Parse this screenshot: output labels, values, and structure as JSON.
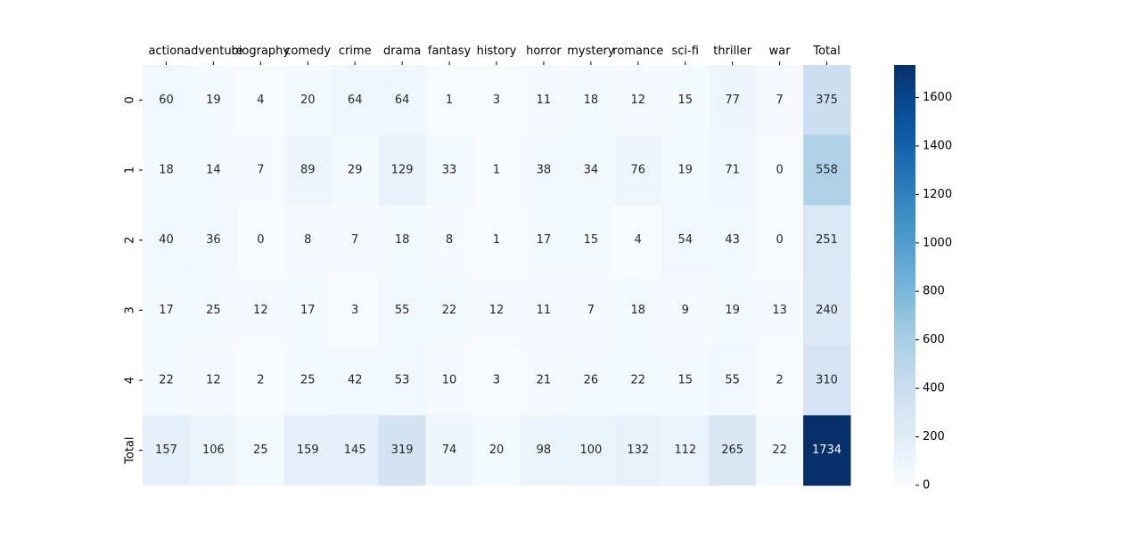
{
  "chart_data": {
    "type": "heatmap",
    "title": "",
    "xlabel": "",
    "ylabel": "",
    "columns": [
      "action",
      "adventure",
      "biography",
      "comedy",
      "crime",
      "drama",
      "fantasy",
      "history",
      "horror",
      "mystery",
      "romance",
      "sci-fi",
      "thriller",
      "war",
      "Total"
    ],
    "rows": [
      "0",
      "1",
      "2",
      "3",
      "4",
      "Total"
    ],
    "values": [
      [
        60,
        19,
        4,
        20,
        64,
        64,
        1,
        3,
        11,
        18,
        12,
        15,
        77,
        7,
        375
      ],
      [
        18,
        14,
        7,
        89,
        29,
        129,
        33,
        1,
        38,
        34,
        76,
        19,
        71,
        0,
        558
      ],
      [
        40,
        36,
        0,
        8,
        7,
        18,
        8,
        1,
        17,
        15,
        4,
        54,
        43,
        0,
        251
      ],
      [
        17,
        25,
        12,
        17,
        3,
        55,
        22,
        12,
        11,
        7,
        18,
        9,
        19,
        13,
        240
      ],
      [
        22,
        12,
        2,
        25,
        42,
        53,
        10,
        3,
        21,
        26,
        22,
        15,
        55,
        2,
        310
      ],
      [
        157,
        106,
        25,
        159,
        145,
        319,
        74,
        20,
        98,
        100,
        132,
        112,
        265,
        22,
        1734
      ]
    ],
    "colormap": "Blues",
    "colorbar": {
      "range": [
        0,
        1734
      ],
      "ticks": [
        0,
        200,
        400,
        600,
        800,
        1000,
        1200,
        1400,
        1600
      ]
    },
    "x_tick_position": "top",
    "grid": false,
    "legend": "colorbar-right"
  }
}
